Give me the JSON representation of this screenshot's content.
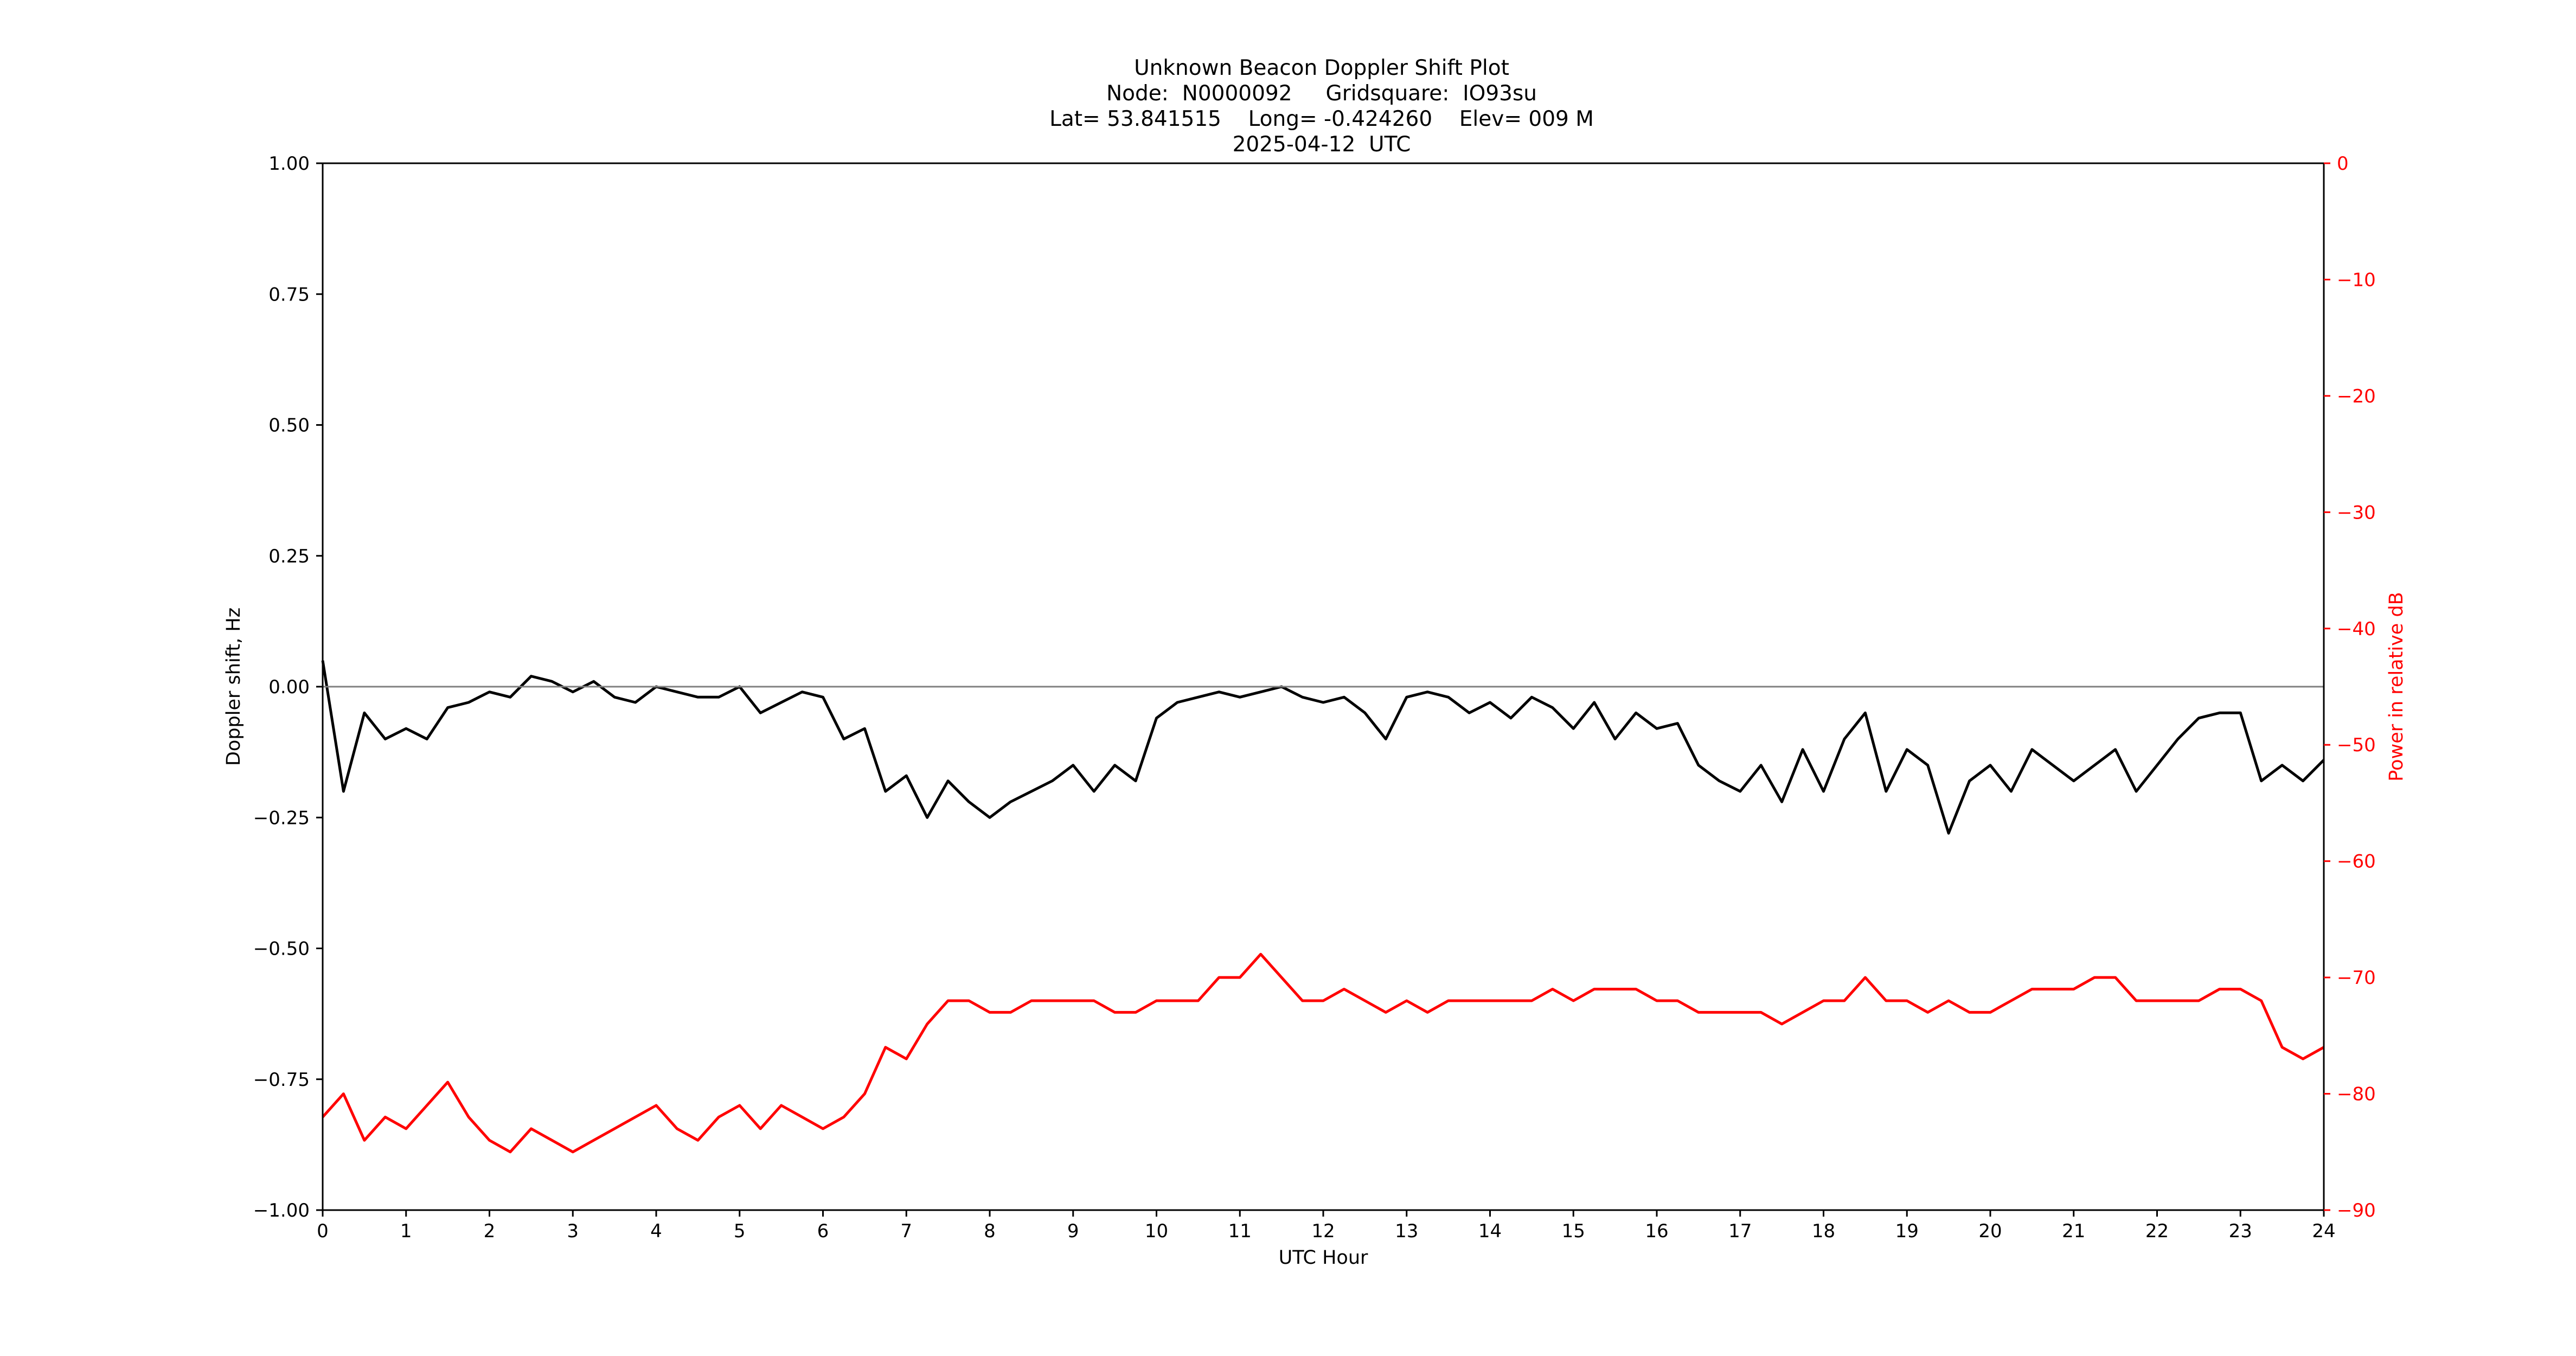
{
  "chart_data": {
    "type": "line",
    "title_lines": [
      "Unknown Beacon Doppler Shift Plot",
      "Node:  N0000092     Gridsquare:  IO93su",
      "Lat= 53.841515    Long= -0.424260    Elev= 009 M",
      "2025-04-12  UTC"
    ],
    "xlabel": "UTC Hour",
    "ylabel_left": "Doppler shift, Hz",
    "ylabel_right": "Power in relative dB",
    "xlim": [
      0,
      24
    ],
    "ylim_left": [
      -1.0,
      1.0
    ],
    "ylim_right": [
      -90,
      0
    ],
    "x_ticks": [
      "0",
      "1",
      "2",
      "3",
      "4",
      "5",
      "6",
      "7",
      "8",
      "9",
      "10",
      "11",
      "12",
      "13",
      "14",
      "15",
      "16",
      "17",
      "18",
      "19",
      "20",
      "21",
      "22",
      "23",
      "24"
    ],
    "y_left_ticks": [
      "1.00",
      "0.75",
      "0.50",
      "0.25",
      "0.00",
      "−0.25",
      "−0.50",
      "−0.75",
      "−1.00"
    ],
    "y_left_tick_values": [
      1.0,
      0.75,
      0.5,
      0.25,
      0.0,
      -0.25,
      -0.5,
      -0.75,
      -1.0
    ],
    "y_right_ticks": [
      "0",
      "−10",
      "−20",
      "−30",
      "−40",
      "−50",
      "−60",
      "−70",
      "−80",
      "−90"
    ],
    "y_right_tick_values": [
      0,
      -10,
      -20,
      -30,
      -40,
      -50,
      -60,
      -70,
      -80,
      -90
    ],
    "reference_line": {
      "y": 0.0,
      "axis": "left",
      "color": "#808080"
    },
    "grid": false,
    "series": [
      {
        "axis": "left",
        "color": "#000000",
        "x": [
          0,
          0.25,
          0.5,
          0.75,
          1,
          1.25,
          1.5,
          1.75,
          2,
          2.25,
          2.5,
          2.75,
          3,
          3.25,
          3.5,
          3.75,
          4,
          4.25,
          4.5,
          4.75,
          5,
          5.25,
          5.5,
          5.75,
          6,
          6.25,
          6.5,
          6.75,
          7,
          7.25,
          7.5,
          7.75,
          8,
          8.25,
          8.5,
          8.75,
          9,
          9.25,
          9.5,
          9.75,
          10,
          10.25,
          10.5,
          10.75,
          11,
          11.25,
          11.5,
          11.75,
          12,
          12.25,
          12.5,
          12.75,
          13,
          13.25,
          13.5,
          13.75,
          14,
          14.25,
          14.5,
          14.75,
          15,
          15.25,
          15.5,
          15.75,
          16,
          16.25,
          16.5,
          16.75,
          17,
          17.25,
          17.5,
          17.75,
          18,
          18.25,
          18.5,
          18.75,
          19,
          19.25,
          19.5,
          19.75,
          20,
          20.25,
          20.5,
          20.75,
          21,
          21.25,
          21.5,
          21.75,
          22,
          22.25,
          22.5,
          22.75,
          23,
          23.25,
          23.5,
          23.75,
          24
        ],
        "y": [
          0.05,
          -0.2,
          -0.05,
          -0.1,
          -0.08,
          -0.1,
          -0.04,
          -0.03,
          -0.01,
          -0.02,
          0.02,
          0.01,
          -0.01,
          0.01,
          -0.02,
          -0.03,
          0.0,
          -0.01,
          -0.02,
          -0.02,
          0.0,
          -0.05,
          -0.03,
          -0.01,
          -0.02,
          -0.1,
          -0.08,
          -0.2,
          -0.17,
          -0.25,
          -0.18,
          -0.22,
          -0.25,
          -0.22,
          -0.2,
          -0.18,
          -0.15,
          -0.2,
          -0.15,
          -0.18,
          -0.06,
          -0.03,
          -0.02,
          -0.01,
          -0.02,
          -0.01,
          0.0,
          -0.02,
          -0.03,
          -0.02,
          -0.05,
          -0.1,
          -0.02,
          -0.01,
          -0.02,
          -0.05,
          -0.03,
          -0.06,
          -0.02,
          -0.04,
          -0.08,
          -0.03,
          -0.1,
          -0.05,
          -0.08,
          -0.07,
          -0.15,
          -0.18,
          -0.2,
          -0.15,
          -0.22,
          -0.12,
          -0.2,
          -0.1,
          -0.05,
          -0.2,
          -0.12,
          -0.15,
          -0.28,
          -0.18,
          -0.15,
          -0.2,
          -0.12,
          -0.15,
          -0.18,
          -0.15,
          -0.12,
          -0.2,
          -0.15,
          -0.1,
          -0.06,
          -0.05,
          -0.05,
          -0.18,
          -0.15,
          -0.18,
          -0.14
        ]
      },
      {
        "axis": "right",
        "color": "#ff0000",
        "x": [
          0,
          0.25,
          0.5,
          0.75,
          1,
          1.25,
          1.5,
          1.75,
          2,
          2.25,
          2.5,
          2.75,
          3,
          3.25,
          3.5,
          3.75,
          4,
          4.25,
          4.5,
          4.75,
          5,
          5.25,
          5.5,
          5.75,
          6,
          6.25,
          6.5,
          6.75,
          7,
          7.25,
          7.5,
          7.75,
          8,
          8.25,
          8.5,
          8.75,
          9,
          9.25,
          9.5,
          9.75,
          10,
          10.25,
          10.5,
          10.75,
          11,
          11.25,
          11.5,
          11.75,
          12,
          12.25,
          12.5,
          12.75,
          13,
          13.25,
          13.5,
          13.75,
          14,
          14.25,
          14.5,
          14.75,
          15,
          15.25,
          15.5,
          15.75,
          16,
          16.25,
          16.5,
          16.75,
          17,
          17.25,
          17.5,
          17.75,
          18,
          18.25,
          18.5,
          18.75,
          19,
          19.25,
          19.5,
          19.75,
          20,
          20.25,
          20.5,
          20.75,
          21,
          21.25,
          21.5,
          21.75,
          22,
          22.25,
          22.5,
          22.75,
          23,
          23.25,
          23.5,
          23.75,
          24
        ],
        "y": [
          -82,
          -80,
          -84,
          -82,
          -83,
          -81,
          -79,
          -82,
          -84,
          -85,
          -83,
          -84,
          -85,
          -84,
          -83,
          -82,
          -81,
          -83,
          -84,
          -82,
          -81,
          -83,
          -81,
          -82,
          -83,
          -82,
          -80,
          -76,
          -77,
          -74,
          -72,
          -72,
          -73,
          -73,
          -72,
          -72,
          -72,
          -72,
          -73,
          -73,
          -72,
          -72,
          -72,
          -70,
          -70,
          -68,
          -70,
          -72,
          -72,
          -71,
          -72,
          -73,
          -72,
          -73,
          -72,
          -72,
          -72,
          -72,
          -72,
          -71,
          -72,
          -71,
          -71,
          -71,
          -72,
          -72,
          -73,
          -73,
          -73,
          -73,
          -74,
          -73,
          -72,
          -72,
          -70,
          -72,
          -72,
          -73,
          -72,
          -73,
          -73,
          -72,
          -71,
          -71,
          -71,
          -70,
          -70,
          -72,
          -72,
          -72,
          -72,
          -71,
          -71,
          -72,
          -76,
          -77,
          -76
        ]
      }
    ]
  }
}
